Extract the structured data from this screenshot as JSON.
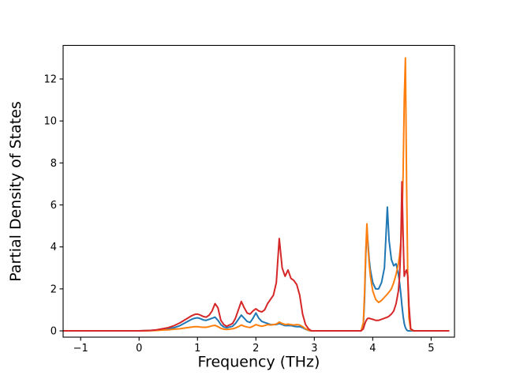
{
  "figure": {
    "background": "#ffffff",
    "frame_color": "#000000"
  },
  "chart_data": {
    "type": "line",
    "title": "",
    "xlabel": "Frequency (THz)",
    "ylabel": "Partial Density of States",
    "xlim": [
      -1.3,
      5.4
    ],
    "ylim": [
      -0.3,
      13.6
    ],
    "grid": false,
    "legend": null,
    "xticks": [
      {
        "value": -1,
        "label": "−1"
      },
      {
        "value": 0,
        "label": "0"
      },
      {
        "value": 1,
        "label": "1"
      },
      {
        "value": 2,
        "label": "2"
      },
      {
        "value": 3,
        "label": "3"
      },
      {
        "value": 4,
        "label": "4"
      },
      {
        "value": 5,
        "label": "5"
      }
    ],
    "yticks": [
      {
        "value": 0,
        "label": "0"
      },
      {
        "value": 2,
        "label": "2"
      },
      {
        "value": 4,
        "label": "4"
      },
      {
        "value": 6,
        "label": "6"
      },
      {
        "value": 8,
        "label": "8"
      },
      {
        "value": 10,
        "label": "10"
      },
      {
        "value": 12,
        "label": "12"
      }
    ],
    "x": [
      -1.3,
      -1.0,
      -0.5,
      -0.2,
      0.0,
      0.1,
      0.2,
      0.3,
      0.4,
      0.5,
      0.6,
      0.7,
      0.8,
      0.9,
      0.95,
      1.0,
      1.05,
      1.1,
      1.15,
      1.2,
      1.25,
      1.3,
      1.35,
      1.4,
      1.45,
      1.5,
      1.55,
      1.6,
      1.65,
      1.7,
      1.75,
      1.8,
      1.85,
      1.9,
      1.95,
      2.0,
      2.05,
      2.1,
      2.15,
      2.2,
      2.25,
      2.3,
      2.35,
      2.4,
      2.45,
      2.5,
      2.55,
      2.6,
      2.65,
      2.7,
      2.75,
      2.8,
      2.85,
      2.9,
      2.95,
      3.0,
      3.2,
      3.4,
      3.6,
      3.8,
      3.84,
      3.86,
      3.88,
      3.9,
      3.92,
      3.94,
      3.96,
      4.0,
      4.05,
      4.1,
      4.15,
      4.2,
      4.25,
      4.28,
      4.32,
      4.36,
      4.4,
      4.44,
      4.46,
      4.48,
      4.5,
      4.52,
      4.54,
      4.56,
      4.58,
      4.6,
      4.62,
      4.65,
      4.7,
      5.0,
      5.3
    ],
    "series": [
      {
        "name": "blue",
        "color": "#1f77b4",
        "values": [
          0,
          0,
          0,
          0,
          0,
          0.01,
          0.02,
          0.04,
          0.07,
          0.1,
          0.15,
          0.25,
          0.4,
          0.55,
          0.6,
          0.62,
          0.58,
          0.52,
          0.5,
          0.55,
          0.6,
          0.65,
          0.5,
          0.3,
          0.18,
          0.15,
          0.18,
          0.22,
          0.35,
          0.55,
          0.75,
          0.6,
          0.45,
          0.4,
          0.6,
          0.85,
          0.6,
          0.45,
          0.4,
          0.35,
          0.3,
          0.3,
          0.3,
          0.35,
          0.3,
          0.25,
          0.25,
          0.25,
          0.22,
          0.2,
          0.2,
          0.15,
          0.08,
          0.02,
          0,
          0,
          0,
          0,
          0,
          0,
          0.3,
          1.5,
          3.5,
          4.9,
          4.2,
          3.4,
          2.9,
          2.3,
          2.0,
          2.0,
          2.3,
          3.0,
          5.9,
          4.3,
          3.4,
          3.1,
          3.2,
          2.7,
          2.3,
          1.8,
          1.2,
          0.7,
          0.35,
          0.15,
          0.05,
          0,
          0,
          0,
          0,
          0,
          0
        ]
      },
      {
        "name": "orange",
        "color": "#ff7f0e",
        "values": [
          0,
          0,
          0,
          0,
          0,
          0,
          0.01,
          0.02,
          0.04,
          0.05,
          0.08,
          0.1,
          0.14,
          0.18,
          0.2,
          0.2,
          0.18,
          0.17,
          0.17,
          0.2,
          0.24,
          0.26,
          0.2,
          0.12,
          0.08,
          0.07,
          0.08,
          0.1,
          0.14,
          0.2,
          0.28,
          0.22,
          0.18,
          0.16,
          0.22,
          0.3,
          0.25,
          0.22,
          0.25,
          0.3,
          0.28,
          0.3,
          0.32,
          0.42,
          0.35,
          0.3,
          0.32,
          0.3,
          0.28,
          0.3,
          0.28,
          0.2,
          0.1,
          0.03,
          0,
          0,
          0,
          0,
          0,
          0,
          0.4,
          1.8,
          3.8,
          5.1,
          4.0,
          3.2,
          2.6,
          1.9,
          1.5,
          1.35,
          1.45,
          1.6,
          1.75,
          1.85,
          2.0,
          2.3,
          2.7,
          3.2,
          3.6,
          4.2,
          5.2,
          7.5,
          11.0,
          13.0,
          7.0,
          2.5,
          0.6,
          0.05,
          0,
          0,
          0
        ]
      },
      {
        "name": "red",
        "color": "#d62728",
        "values": [
          0,
          0,
          0,
          0,
          0,
          0.01,
          0.02,
          0.05,
          0.1,
          0.15,
          0.25,
          0.38,
          0.55,
          0.72,
          0.78,
          0.8,
          0.75,
          0.68,
          0.65,
          0.75,
          0.95,
          1.3,
          1.1,
          0.5,
          0.3,
          0.22,
          0.28,
          0.35,
          0.6,
          1.0,
          1.4,
          1.1,
          0.85,
          0.8,
          0.95,
          1.05,
          0.95,
          0.9,
          1.0,
          1.3,
          1.5,
          1.7,
          2.3,
          4.4,
          3.0,
          2.6,
          2.9,
          2.5,
          2.4,
          2.2,
          1.7,
          0.8,
          0.3,
          0.1,
          0,
          0,
          0,
          0,
          0,
          0,
          0.1,
          0.3,
          0.45,
          0.55,
          0.6,
          0.6,
          0.58,
          0.55,
          0.5,
          0.5,
          0.55,
          0.6,
          0.65,
          0.7,
          0.8,
          0.95,
          1.3,
          1.9,
          2.6,
          4.0,
          7.1,
          4.5,
          2.6,
          2.8,
          2.9,
          2.6,
          1.2,
          0.1,
          0,
          0,
          0
        ]
      }
    ]
  }
}
